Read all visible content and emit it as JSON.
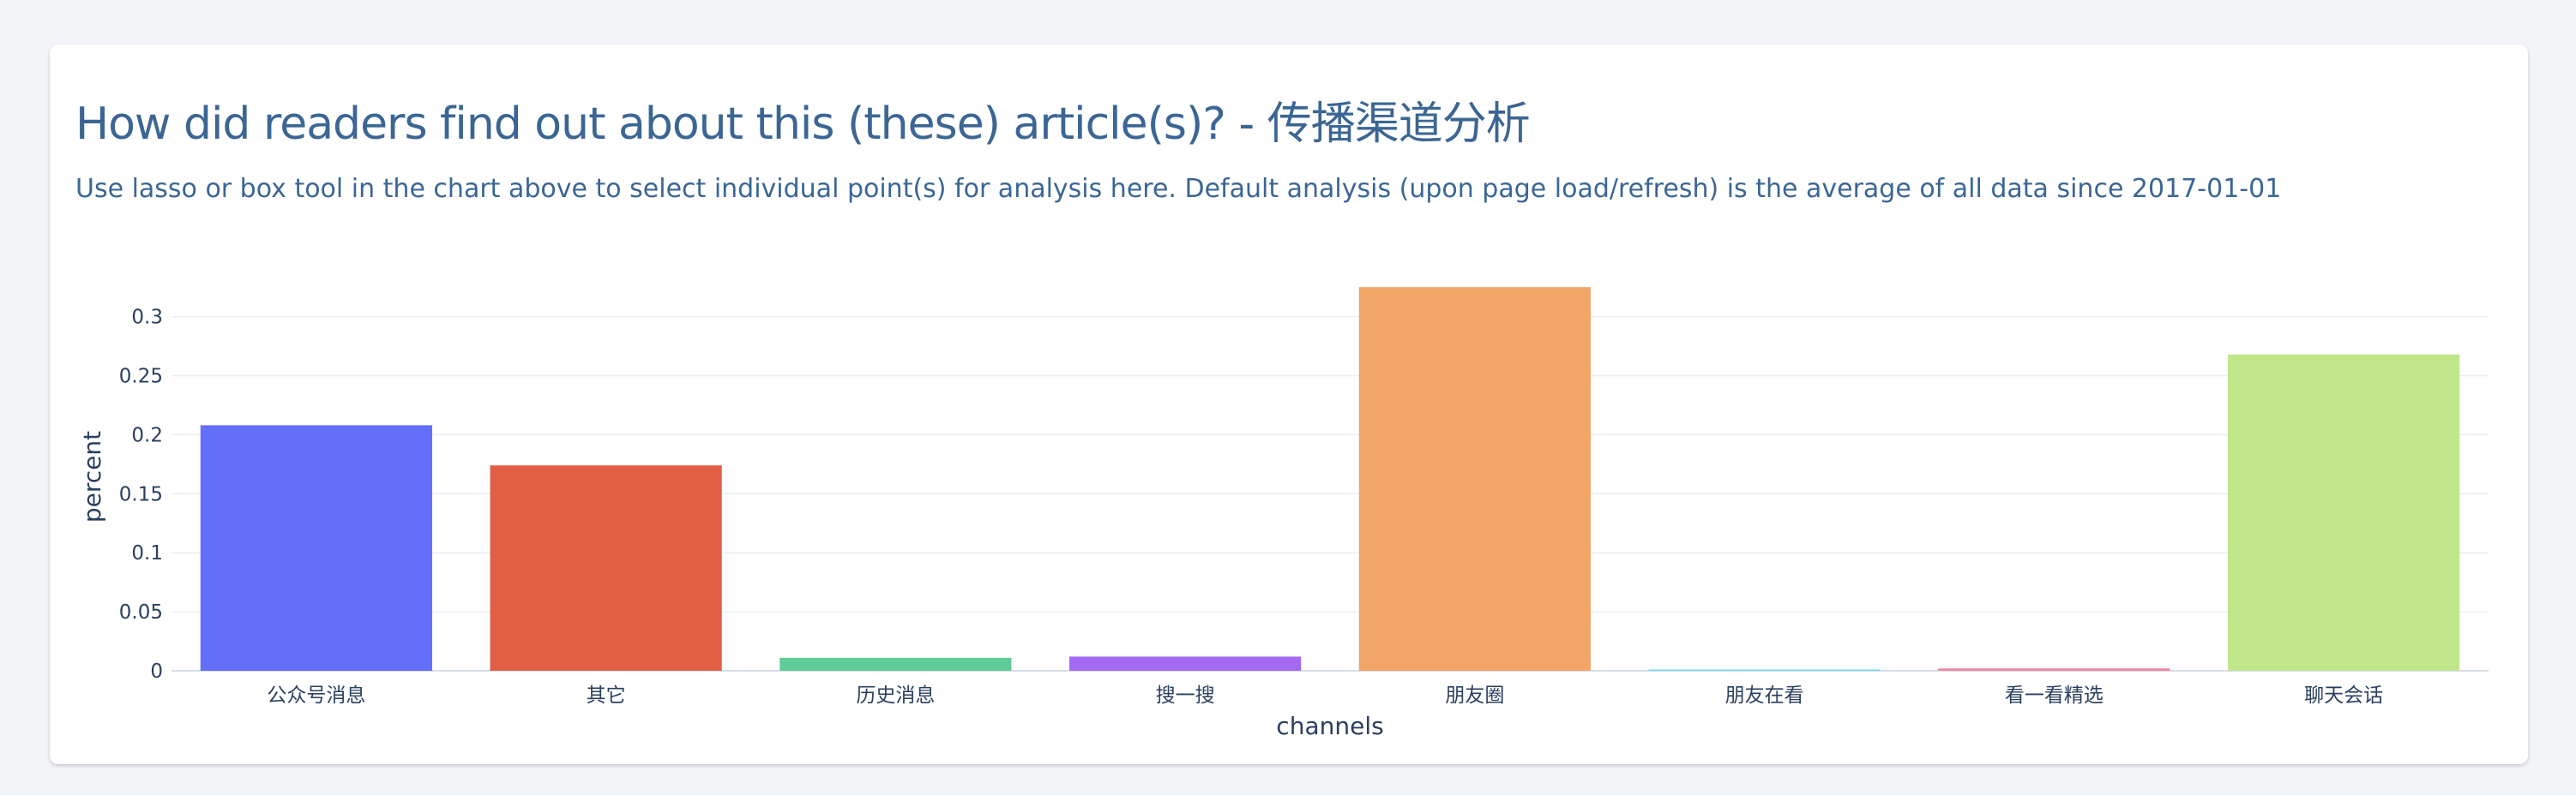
{
  "header": {
    "title": "How did readers find out about this (these) article(s)? - 传播渠道分析",
    "subtitle": "Use lasso or box tool in the chart above to select individual point(s) for analysis here. Default analysis (upon page load/refresh) is the average of all data since 2017-01-01"
  },
  "chart_data": {
    "type": "bar",
    "title": "",
    "xlabel": "channels",
    "ylabel": "percent",
    "categories": [
      "公众号消息",
      "其它",
      "历史消息",
      "搜一搜",
      "朋友圈",
      "朋友在看",
      "看一看精选",
      "聊天会话"
    ],
    "values": [
      0.208,
      0.174,
      0.011,
      0.012,
      0.325,
      0.001,
      0.002,
      0.268
    ],
    "colors": [
      "#636efa",
      "#e05f45",
      "#5ecb98",
      "#a369f3",
      "#f2a566",
      "#66d6f0",
      "#f285a4",
      "#bfe78a"
    ],
    "ylim": [
      0,
      0.336
    ],
    "yticks": [
      {
        "value": 0,
        "label": "0"
      },
      {
        "value": 0.05,
        "label": "0.05"
      },
      {
        "value": 0.1,
        "label": "0.1"
      },
      {
        "value": 0.15,
        "label": "0.15"
      },
      {
        "value": 0.2,
        "label": "0.2"
      },
      {
        "value": 0.25,
        "label": "0.25"
      },
      {
        "value": 0.3,
        "label": "0.3"
      }
    ],
    "grid": true,
    "legend": "none"
  }
}
